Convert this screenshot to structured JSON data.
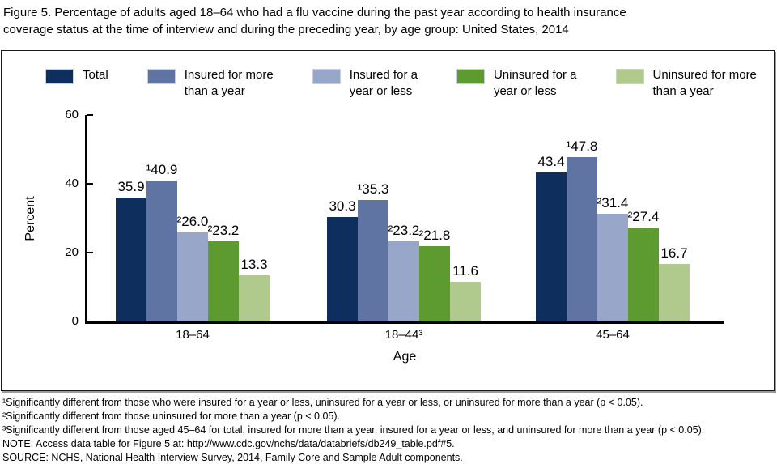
{
  "title": {
    "line1": "Figure 5. Percentage of adults aged 18–64 who had a flu vaccine during the past year according to health insurance",
    "line2": "coverage status at the time of interview and during the preceding year, by age group: United States, 2014"
  },
  "chart_data": {
    "type": "bar",
    "title": "",
    "xlabel": "Age",
    "ylabel": "Percent",
    "ylim": [
      0,
      60
    ],
    "yticks": [
      0,
      20,
      40,
      60
    ],
    "grid": false,
    "legend_position": "top",
    "categories": [
      "18–64",
      "18–44³",
      "45–64"
    ],
    "series": [
      {
        "name": "Total",
        "color": "#0e2f5e",
        "values": [
          35.9,
          30.3,
          43.4
        ],
        "labels": [
          "35.9",
          "30.3",
          "43.4"
        ]
      },
      {
        "name": "Insured for more\nthan a year",
        "color": "#5f74a2",
        "values": [
          40.9,
          35.3,
          47.8
        ],
        "labels": [
          "¹40.9",
          "¹35.3",
          "¹47.8"
        ]
      },
      {
        "name": "Insured for a\nyear or less",
        "color": "#98a6c9",
        "values": [
          26.0,
          23.2,
          31.4
        ],
        "labels": [
          "²26.0",
          "²23.2",
          "²31.4"
        ]
      },
      {
        "name": "Uninsured for a\nyear or less",
        "color": "#5d9b31",
        "values": [
          23.2,
          21.8,
          27.4
        ],
        "labels": [
          "²23.2",
          "²21.8",
          "²27.4"
        ]
      },
      {
        "name": "Uninsured for more\nthan a year",
        "color": "#b0ca8e",
        "values": [
          13.3,
          11.6,
          16.7
        ],
        "labels": [
          "13.3",
          "11.6",
          "16.7"
        ]
      }
    ]
  },
  "footnotes": [
    "¹Significantly different from those who were insured for a year or less, uninsured for a year or less, or uninsured for more than a year (p < 0.05).",
    "²Significantly different from those uninsured for more than a year (p < 0.05).",
    "³Significantly different from those aged 45–64 for total, insured for more than a year, insured for a year or less, and uninsured for more than a year (p < 0.05).",
    "NOTE: Access data table for Figure 5 at: http://www.cdc.gov/nchs/data/databriefs/db249_table.pdf#5.",
    "SOURCE: NCHS, National Health Interview Survey, 2014, Family Core and Sample Adult components."
  ]
}
